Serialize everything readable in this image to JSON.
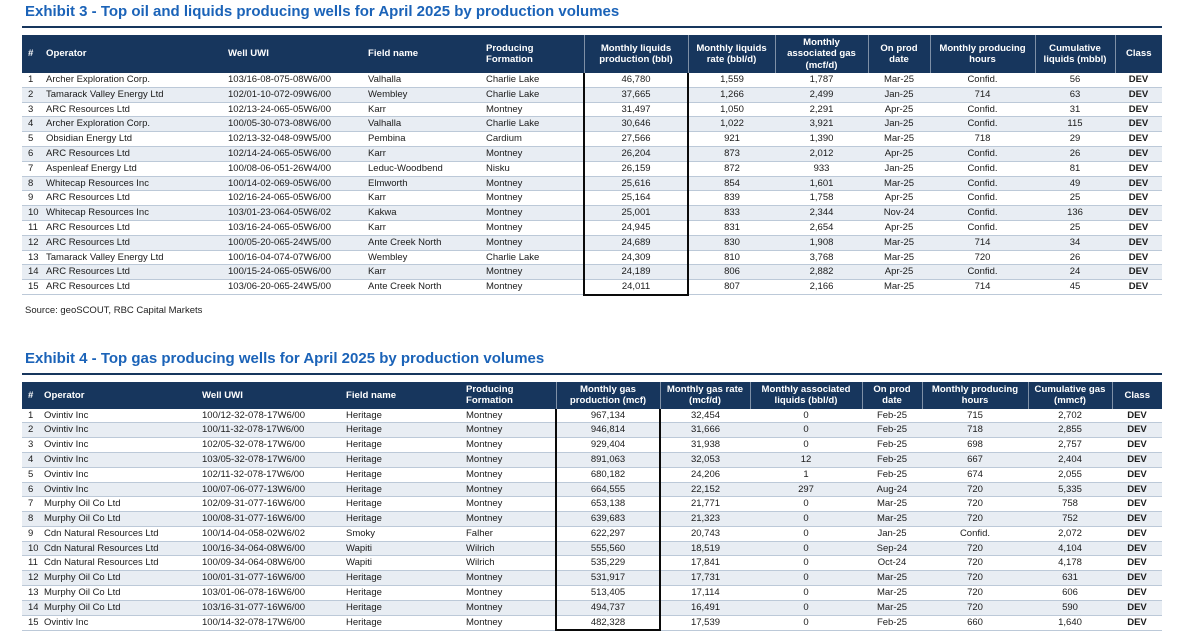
{
  "colors": {
    "title_blue": "#1B63B8",
    "header_navy": "#17365D",
    "header_text": "#FFFFFF",
    "row_stripe": "#E8EDF3",
    "row_line": "#BCC9D8",
    "body_text": "#1B1B1B",
    "highlight_box": "#0A0A0A"
  },
  "exhibits": [
    {
      "id": "exhibit-3",
      "title": "Exhibit 3 - Top oil and liquids producing wells for April 2025 by production volumes",
      "source": "Source: geoSCOUT, RBC Capital Markets",
      "columns": [
        {
          "label": "#"
        },
        {
          "label": "Operator"
        },
        {
          "label": "Well UWI"
        },
        {
          "label": "Field name"
        },
        {
          "label": "Producing Formation"
        },
        {
          "label": "Monthly liquids production (bbl)",
          "highlighted": true
        },
        {
          "label": "Monthly liquids rate (bbl/d)"
        },
        {
          "label": "Monthly associated gas (mcf/d)"
        },
        {
          "label": "On prod date"
        },
        {
          "label": "Monthly producing hours"
        },
        {
          "label": "Cumulative liquids (mbbl)"
        },
        {
          "label": "Class"
        }
      ],
      "rows": [
        [
          "1",
          "Archer Exploration Corp.",
          "103/16-08-075-08W6/00",
          "Valhalla",
          "Charlie Lake",
          "46,780",
          "1,559",
          "1,787",
          "Mar-25",
          "Confid.",
          "56",
          "DEV"
        ],
        [
          "2",
          "Tamarack Valley Energy Ltd",
          "102/01-10-072-09W6/00",
          "Wembley",
          "Charlie Lake",
          "37,665",
          "1,266",
          "2,499",
          "Jan-25",
          "714",
          "63",
          "DEV"
        ],
        [
          "3",
          "ARC Resources Ltd",
          "102/13-24-065-05W6/00",
          "Karr",
          "Montney",
          "31,497",
          "1,050",
          "2,291",
          "Apr-25",
          "Confid.",
          "31",
          "DEV"
        ],
        [
          "4",
          "Archer Exploration Corp.",
          "100/05-30-073-08W6/00",
          "Valhalla",
          "Charlie Lake",
          "30,646",
          "1,022",
          "3,921",
          "Jan-25",
          "Confid.",
          "115",
          "DEV"
        ],
        [
          "5",
          "Obsidian Energy Ltd",
          "102/13-32-048-09W5/00",
          "Pembina",
          "Cardium",
          "27,566",
          "921",
          "1,390",
          "Mar-25",
          "718",
          "29",
          "DEV"
        ],
        [
          "6",
          "ARC Resources Ltd",
          "102/14-24-065-05W6/00",
          "Karr",
          "Montney",
          "26,204",
          "873",
          "2,012",
          "Apr-25",
          "Confid.",
          "26",
          "DEV"
        ],
        [
          "7",
          "Aspenleaf Energy Ltd",
          "100/08-06-051-26W4/00",
          "Leduc-Woodbend",
          "Nisku",
          "26,159",
          "872",
          "933",
          "Jan-25",
          "Confid.",
          "81",
          "DEV"
        ],
        [
          "8",
          "Whitecap Resources Inc",
          "100/14-02-069-05W6/00",
          "Elmworth",
          "Montney",
          "25,616",
          "854",
          "1,601",
          "Mar-25",
          "Confid.",
          "49",
          "DEV"
        ],
        [
          "9",
          "ARC Resources Ltd",
          "102/16-24-065-05W6/00",
          "Karr",
          "Montney",
          "25,164",
          "839",
          "1,758",
          "Apr-25",
          "Confid.",
          "25",
          "DEV"
        ],
        [
          "10",
          "Whitecap Resources Inc",
          "103/01-23-064-05W6/02",
          "Kakwa",
          "Montney",
          "25,001",
          "833",
          "2,344",
          "Nov-24",
          "Confid.",
          "136",
          "DEV"
        ],
        [
          "11",
          "ARC Resources Ltd",
          "103/16-24-065-05W6/00",
          "Karr",
          "Montney",
          "24,945",
          "831",
          "2,654",
          "Apr-25",
          "Confid.",
          "25",
          "DEV"
        ],
        [
          "12",
          "ARC Resources Ltd",
          "100/05-20-065-24W5/00",
          "Ante Creek North",
          "Montney",
          "24,689",
          "830",
          "1,908",
          "Mar-25",
          "714",
          "34",
          "DEV"
        ],
        [
          "13",
          "Tamarack Valley Energy Ltd",
          "100/16-04-074-07W6/00",
          "Wembley",
          "Charlie Lake",
          "24,309",
          "810",
          "3,768",
          "Mar-25",
          "720",
          "26",
          "DEV"
        ],
        [
          "14",
          "ARC Resources Ltd",
          "100/15-24-065-05W6/00",
          "Karr",
          "Montney",
          "24,189",
          "806",
          "2,882",
          "Apr-25",
          "Confid.",
          "24",
          "DEV"
        ],
        [
          "15",
          "ARC Resources Ltd",
          "103/06-20-065-24W5/00",
          "Ante Creek North",
          "Montney",
          "24,011",
          "807",
          "2,166",
          "Mar-25",
          "714",
          "45",
          "DEV"
        ]
      ]
    },
    {
      "id": "exhibit-4",
      "title": "Exhibit 4 - Top gas producing wells for April 2025 by production volumes",
      "columns": [
        {
          "label": "#"
        },
        {
          "label": "Operator"
        },
        {
          "label": "Well UWI"
        },
        {
          "label": "Field name"
        },
        {
          "label": "Producing Formation"
        },
        {
          "label": "Monthly gas production (mcf)",
          "highlighted": true
        },
        {
          "label": "Monthly gas rate (mcf/d)"
        },
        {
          "label": "Monthly associated liquids (bbl/d)"
        },
        {
          "label": "On prod date"
        },
        {
          "label": "Monthly producing hours"
        },
        {
          "label": "Cumulative gas (mmcf)"
        },
        {
          "label": "Class"
        }
      ],
      "rows": [
        [
          "1",
          "Ovintiv Inc",
          "100/12-32-078-17W6/00",
          "Heritage",
          "Montney",
          "967,134",
          "32,454",
          "0",
          "Feb-25",
          "715",
          "2,702",
          "DEV"
        ],
        [
          "2",
          "Ovintiv Inc",
          "100/11-32-078-17W6/00",
          "Heritage",
          "Montney",
          "946,814",
          "31,666",
          "0",
          "Feb-25",
          "718",
          "2,855",
          "DEV"
        ],
        [
          "3",
          "Ovintiv Inc",
          "102/05-32-078-17W6/00",
          "Heritage",
          "Montney",
          "929,404",
          "31,938",
          "0",
          "Feb-25",
          "698",
          "2,757",
          "DEV"
        ],
        [
          "4",
          "Ovintiv Inc",
          "103/05-32-078-17W6/00",
          "Heritage",
          "Montney",
          "891,063",
          "32,053",
          "12",
          "Feb-25",
          "667",
          "2,404",
          "DEV"
        ],
        [
          "5",
          "Ovintiv Inc",
          "102/11-32-078-17W6/00",
          "Heritage",
          "Montney",
          "680,182",
          "24,206",
          "1",
          "Feb-25",
          "674",
          "2,055",
          "DEV"
        ],
        [
          "6",
          "Ovintiv Inc",
          "100/07-06-077-13W6/00",
          "Heritage",
          "Montney",
          "664,555",
          "22,152",
          "297",
          "Aug-24",
          "720",
          "5,335",
          "DEV"
        ],
        [
          "7",
          "Murphy Oil Co Ltd",
          "102/09-31-077-16W6/00",
          "Heritage",
          "Montney",
          "653,138",
          "21,771",
          "0",
          "Mar-25",
          "720",
          "758",
          "DEV"
        ],
        [
          "8",
          "Murphy Oil Co Ltd",
          "100/08-31-077-16W6/00",
          "Heritage",
          "Montney",
          "639,683",
          "21,323",
          "0",
          "Mar-25",
          "720",
          "752",
          "DEV"
        ],
        [
          "9",
          "Cdn Natural Resources Ltd",
          "100/14-04-058-02W6/02",
          "Smoky",
          "Falher",
          "622,297",
          "20,743",
          "0",
          "Jan-25",
          "Confid.",
          "2,072",
          "DEV"
        ],
        [
          "10",
          "Cdn Natural Resources Ltd",
          "100/16-34-064-08W6/00",
          "Wapiti",
          "Wilrich",
          "555,560",
          "18,519",
          "0",
          "Sep-24",
          "720",
          "4,104",
          "DEV"
        ],
        [
          "11",
          "Cdn Natural Resources Ltd",
          "100/09-34-064-08W6/00",
          "Wapiti",
          "Wilrich",
          "535,229",
          "17,841",
          "0",
          "Oct-24",
          "720",
          "4,178",
          "DEV"
        ],
        [
          "12",
          "Murphy Oil Co Ltd",
          "100/01-31-077-16W6/00",
          "Heritage",
          "Montney",
          "531,917",
          "17,731",
          "0",
          "Mar-25",
          "720",
          "631",
          "DEV"
        ],
        [
          "13",
          "Murphy Oil Co Ltd",
          "103/01-06-078-16W6/00",
          "Heritage",
          "Montney",
          "513,405",
          "17,114",
          "0",
          "Mar-25",
          "720",
          "606",
          "DEV"
        ],
        [
          "14",
          "Murphy Oil Co Ltd",
          "103/16-31-077-16W6/00",
          "Heritage",
          "Montney",
          "494,737",
          "16,491",
          "0",
          "Mar-25",
          "720",
          "590",
          "DEV"
        ],
        [
          "15",
          "Ovintiv Inc",
          "100/14-32-078-17W6/00",
          "Heritage",
          "Montney",
          "482,328",
          "17,539",
          "0",
          "Feb-25",
          "660",
          "1,640",
          "DEV"
        ]
      ]
    }
  ]
}
